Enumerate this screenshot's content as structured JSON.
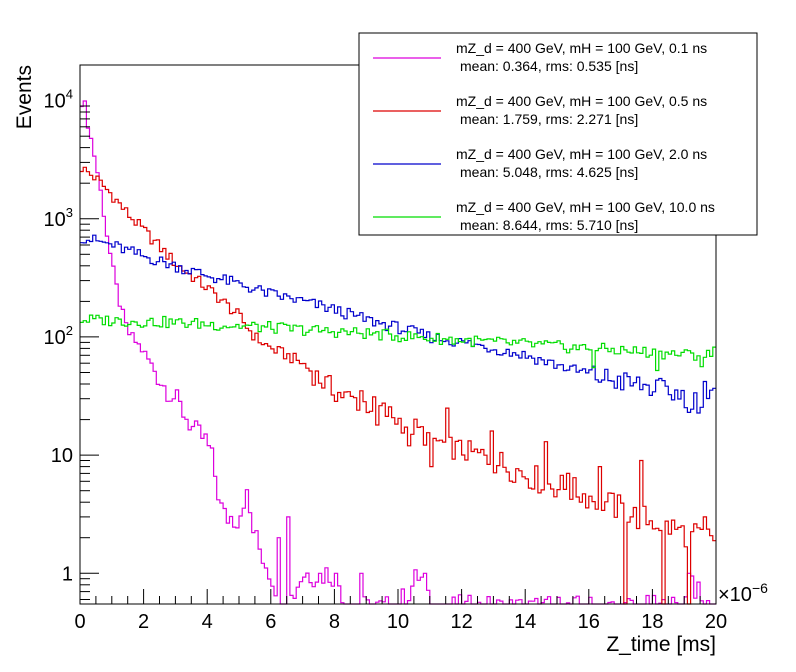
{
  "chart_data": {
    "type": "histogram",
    "title": "",
    "xlabel": "Z_time [ms]",
    "ylabel": "Events",
    "x_multiplier_label": "×10",
    "x_multiplier_exponent": "−6",
    "xlim": [
      0,
      20
    ],
    "ylim": [
      0.55,
      20000
    ],
    "y_scale": "log",
    "x_ticks": [
      {
        "value": 0,
        "label": "0"
      },
      {
        "value": 2,
        "label": "2"
      },
      {
        "value": 4,
        "label": "4"
      },
      {
        "value": 6,
        "label": "6"
      },
      {
        "value": 8,
        "label": "8"
      },
      {
        "value": 10,
        "label": "10"
      },
      {
        "value": 12,
        "label": "12"
      },
      {
        "value": 14,
        "label": "14"
      },
      {
        "value": 16,
        "label": "16"
      },
      {
        "value": 18,
        "label": "18"
      },
      {
        "value": 20,
        "label": "20"
      }
    ],
    "y_ticks": [
      {
        "value": 1,
        "label": "1"
      },
      {
        "value": 10,
        "label": "10"
      },
      {
        "value": 100,
        "label": "10",
        "sup": "2"
      },
      {
        "value": 1000,
        "label": "10",
        "sup": "3"
      },
      {
        "value": 10000,
        "label": "10",
        "sup": "4"
      }
    ],
    "legend_position": "top-right",
    "series": [
      {
        "name": "mZ_d = 400 GeV, mH = 100 GeV, 0.1 ns",
        "stats": "mean: 0.364, rms: 0.535 [ns]",
        "color": "#dd00dd",
        "knots": [
          [
            0.05,
            10000
          ],
          [
            0.15,
            9000
          ],
          [
            0.3,
            5500
          ],
          [
            0.5,
            3000
          ],
          [
            0.7,
            1400
          ],
          [
            0.9,
            600
          ],
          [
            1.1,
            300
          ],
          [
            1.3,
            170
          ],
          [
            1.5,
            110
          ],
          [
            1.7,
            95
          ],
          [
            2.0,
            75
          ],
          [
            2.3,
            55
          ],
          [
            2.6,
            40
          ],
          [
            3.0,
            30
          ],
          [
            3.3,
            22
          ],
          [
            3.6,
            16
          ],
          [
            4.0,
            13
          ],
          [
            4.2,
            8
          ],
          [
            4.5,
            3
          ],
          [
            5.0,
            3
          ],
          [
            5.2,
            5
          ],
          [
            5.5,
            2
          ],
          [
            6.0,
            1
          ],
          [
            6.5,
            0.5
          ],
          [
            7.0,
            1
          ],
          [
            8.0,
            1
          ],
          [
            8.5,
            0.5
          ],
          [
            10.0,
            0.5
          ],
          [
            10.7,
            1
          ],
          [
            11.0,
            0.5
          ],
          [
            19.0,
            0.5
          ],
          [
            19.2,
            1
          ],
          [
            19.6,
            0.5
          ],
          [
            20,
            0.5
          ]
        ],
        "spikes": [
          [
            6.3,
            2
          ],
          [
            6.6,
            3
          ],
          [
            7.5,
            1
          ],
          [
            8.1,
            1
          ],
          [
            8.8,
            1
          ],
          [
            10.8,
            1
          ],
          [
            19.2,
            1
          ]
        ]
      },
      {
        "name": "mZ_d = 400 GeV, mH = 100 GeV, 0.5 ns",
        "stats": "mean: 1.759, rms: 2.271 [ns]",
        "color": "#dd0000",
        "knots": [
          [
            0.05,
            2700
          ],
          [
            0.5,
            2200
          ],
          [
            1.0,
            1600
          ],
          [
            1.5,
            1100
          ],
          [
            2.0,
            800
          ],
          [
            2.5,
            580
          ],
          [
            3.0,
            420
          ],
          [
            3.5,
            330
          ],
          [
            4.0,
            260
          ],
          [
            4.5,
            200
          ],
          [
            5.0,
            150
          ],
          [
            5.5,
            100
          ],
          [
            6.0,
            80
          ],
          [
            6.5,
            70
          ],
          [
            7.0,
            60
          ],
          [
            7.5,
            45
          ],
          [
            8.0,
            35
          ],
          [
            8.5,
            30
          ],
          [
            9.0,
            27
          ],
          [
            9.5,
            24
          ],
          [
            10.0,
            20
          ],
          [
            10.5,
            17
          ],
          [
            11.0,
            14
          ],
          [
            11.5,
            12
          ],
          [
            12.0,
            11
          ],
          [
            12.5,
            10
          ],
          [
            13.0,
            9
          ],
          [
            13.5,
            8
          ],
          [
            14.0,
            7
          ],
          [
            14.5,
            6
          ],
          [
            15.0,
            5.5
          ],
          [
            15.5,
            5
          ],
          [
            16.0,
            4.5
          ],
          [
            16.5,
            4
          ],
          [
            17.0,
            3.5
          ],
          [
            17.5,
            3
          ],
          [
            18.0,
            2.8
          ],
          [
            18.5,
            2.5
          ],
          [
            19.0,
            2.2
          ],
          [
            19.5,
            2
          ],
          [
            20.0,
            2
          ]
        ],
        "spikes": [
          [
            8.8,
            35
          ],
          [
            9.3,
            18
          ],
          [
            10.3,
            12
          ],
          [
            11.0,
            8
          ],
          [
            11.6,
            25
          ],
          [
            12.9,
            16
          ],
          [
            14.7,
            13
          ],
          [
            15.3,
            7
          ],
          [
            16.3,
            8
          ],
          [
            17.6,
            9
          ],
          [
            17.1,
            0.5
          ],
          [
            18.3,
            0.5
          ],
          [
            19.2,
            0.5
          ],
          [
            19.6,
            3
          ]
        ]
      },
      {
        "name": "mZ_d = 400 GeV, mH = 100 GeV, 2.0 ns",
        "stats": "mean: 5.048, rms: 4.625 [ns]",
        "color": "#0000cc",
        "knots": [
          [
            0.05,
            700
          ],
          [
            1.0,
            600
          ],
          [
            2.0,
            480
          ],
          [
            3.0,
            400
          ],
          [
            4.0,
            330
          ],
          [
            5.0,
            280
          ],
          [
            6.0,
            230
          ],
          [
            7.0,
            200
          ],
          [
            8.0,
            170
          ],
          [
            9.0,
            140
          ],
          [
            10.0,
            120
          ],
          [
            11.0,
            100
          ],
          [
            12.0,
            90
          ],
          [
            13.0,
            80
          ],
          [
            14.0,
            70
          ],
          [
            15.0,
            58
          ],
          [
            16.0,
            48
          ],
          [
            17.0,
            42
          ],
          [
            18.0,
            37
          ],
          [
            19.0,
            32
          ],
          [
            19.5,
            28
          ],
          [
            20.0,
            32
          ]
        ],
        "spikes": [
          [
            19.2,
            23
          ],
          [
            19.7,
            42
          ]
        ]
      },
      {
        "name": "mZ_d = 400 GeV, mH = 100 GeV, 10.0 ns",
        "stats": "mean: 8.644, rms: 5.710 [ns]",
        "color": "#00dd00",
        "knots": [
          [
            0.05,
            140
          ],
          [
            1.0,
            138
          ],
          [
            2.0,
            135
          ],
          [
            3.0,
            132
          ],
          [
            4.0,
            128
          ],
          [
            5.0,
            124
          ],
          [
            6.0,
            120
          ],
          [
            7.0,
            115
          ],
          [
            8.0,
            111
          ],
          [
            9.0,
            107
          ],
          [
            10.0,
            102
          ],
          [
            11.0,
            98
          ],
          [
            12.0,
            94
          ],
          [
            13.0,
            90
          ],
          [
            14.0,
            87
          ],
          [
            15.0,
            83
          ],
          [
            16.0,
            80
          ],
          [
            17.0,
            77
          ],
          [
            18.0,
            74
          ],
          [
            19.0,
            71
          ],
          [
            20.0,
            70
          ]
        ],
        "spikes": [
          [
            16.2,
            55
          ],
          [
            18.2,
            52
          ],
          [
            19.5,
            56
          ],
          [
            20.0,
            82
          ]
        ]
      }
    ]
  }
}
